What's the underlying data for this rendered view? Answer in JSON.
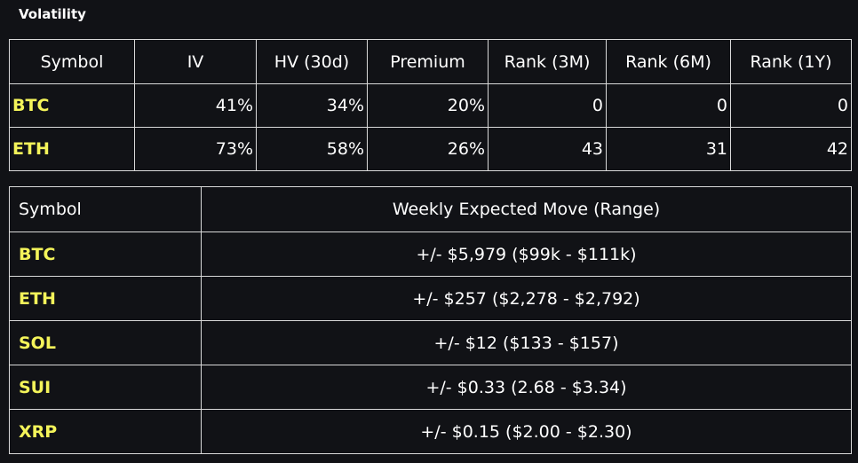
{
  "title": "Volatility",
  "colors": {
    "background": "#111216",
    "symbol_accent": "#f4f45a",
    "border": "#d9d9d9"
  },
  "volatility_table": {
    "headers": [
      "Symbol",
      "IV",
      "HV (30d)",
      "Premium",
      "Rank (3M)",
      "Rank (6M)",
      "Rank (1Y)"
    ],
    "rows": [
      {
        "symbol": "BTC",
        "iv": "41%",
        "hv30": "34%",
        "premium": "20%",
        "rank3m": "0",
        "rank6m": "0",
        "rank1y": "0"
      },
      {
        "symbol": "ETH",
        "iv": "73%",
        "hv30": "58%",
        "premium": "26%",
        "rank3m": "43",
        "rank6m": "31",
        "rank1y": "42"
      }
    ]
  },
  "expected_move_table": {
    "headers": [
      "Symbol",
      "Weekly Expected Move (Range)"
    ],
    "rows": [
      {
        "symbol": "BTC",
        "move": "+/- $5,979 ($99k - $111k)"
      },
      {
        "symbol": "ETH",
        "move": "+/- $257 ($2,278 - $2,792)"
      },
      {
        "symbol": "SOL",
        "move": "+/- $12 ($133 - $157)"
      },
      {
        "symbol": "SUI",
        "move": "+/- $0.33 (2.68 - $3.34)"
      },
      {
        "symbol": "XRP",
        "move": "+/- $0.15 ($2.00 - $2.30)"
      }
    ]
  }
}
